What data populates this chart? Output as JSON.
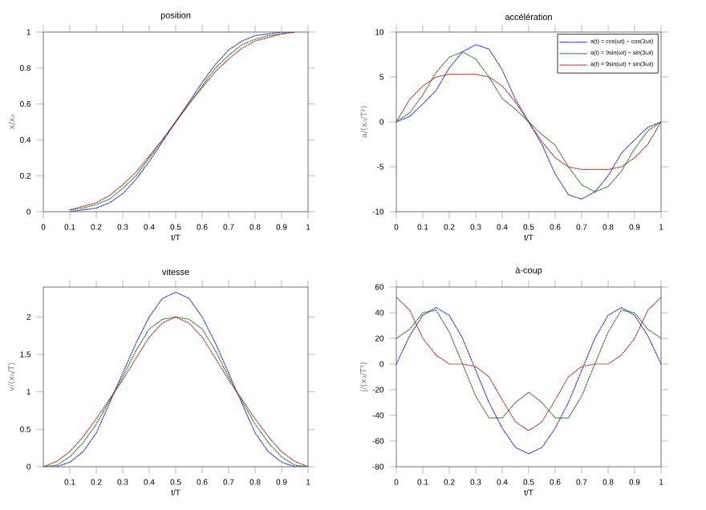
{
  "chart_data": [
    {
      "type": "line",
      "title": "position",
      "xlabel": "t/T",
      "ylabel": "x/x₀",
      "line_style": "dotted",
      "x": [
        0.1,
        0.15,
        0.2,
        0.25,
        0.3,
        0.35,
        0.4,
        0.45,
        0.5,
        0.55,
        0.6,
        0.65,
        0.7,
        0.75,
        0.8,
        0.85,
        0.9,
        0.95
      ],
      "xlim": [
        0,
        1
      ],
      "ylim": [
        0,
        1
      ],
      "xticks": [
        0,
        0.1,
        0.2,
        0.3,
        0.4,
        0.5,
        0.6,
        0.7,
        0.8,
        0.9,
        1
      ],
      "yticks": [
        0,
        0.2,
        0.4,
        0.6,
        0.8,
        1
      ],
      "series": [
        {
          "color": "#0000ff",
          "values": [
            0,
            0.01,
            0.02,
            0.05,
            0.1,
            0.18,
            0.28,
            0.39,
            0.5,
            0.61,
            0.72,
            0.82,
            0.9,
            0.95,
            0.98,
            0.99,
            1,
            1
          ]
        },
        {
          "color": "#006400",
          "values": [
            0.01,
            0.02,
            0.04,
            0.07,
            0.13,
            0.2,
            0.3,
            0.4,
            0.5,
            0.6,
            0.7,
            0.8,
            0.87,
            0.93,
            0.96,
            0.98,
            0.99,
            1
          ]
        },
        {
          "color": "#c00000",
          "values": [
            0.01,
            0.03,
            0.05,
            0.09,
            0.15,
            0.22,
            0.31,
            0.4,
            0.5,
            0.6,
            0.69,
            0.78,
            0.85,
            0.91,
            0.95,
            0.97,
            0.99,
            1
          ]
        }
      ]
    },
    {
      "type": "line",
      "title": "accélération",
      "xlabel": "t/T",
      "ylabel": "a/(x₀/T²)",
      "line_style": "dotted",
      "legend": "top right",
      "x": [
        0,
        0.05,
        0.1,
        0.15,
        0.2,
        0.25,
        0.3,
        0.35,
        0.4,
        0.45,
        0.5,
        0.55,
        0.6,
        0.65,
        0.7,
        0.75,
        0.8,
        0.85,
        0.9,
        0.95,
        1
      ],
      "xlim": [
        0,
        1
      ],
      "ylim": [
        -10,
        10
      ],
      "xticks": [
        0,
        0.1,
        0.2,
        0.3,
        0.4,
        0.5,
        0.6,
        0.7,
        0.8,
        0.9,
        1
      ],
      "yticks": [
        -10,
        -5,
        0,
        5,
        10
      ],
      "series": [
        {
          "name": "a(t) = cos(ωt) − cos(3ωt)",
          "color": "#0000ff",
          "values": [
            0,
            0.6,
            2,
            3.5,
            6,
            7.8,
            8.6,
            8.1,
            5.8,
            2.5,
            0,
            -2.5,
            -5.8,
            -8.1,
            -8.6,
            -7.8,
            -6,
            -3.5,
            -2,
            -0.6,
            0
          ]
        },
        {
          "name": "a(t) = 9sin(ωt) − sin(3ωt)",
          "color": "#006400",
          "values": [
            0,
            1,
            3,
            5.5,
            7.2,
            7.8,
            7,
            5,
            2.6,
            1.4,
            0,
            -1.4,
            -2.6,
            -5,
            -7,
            -7.8,
            -7.2,
            -5.5,
            -3,
            -1,
            0
          ]
        },
        {
          "name": "a(t) = 9sin(ωt) + sin(3ωt)",
          "color": "#c00000",
          "values": [
            0,
            2.5,
            4,
            5,
            5.3,
            5.3,
            5.3,
            5,
            4,
            2.2,
            0,
            -2.2,
            -4,
            -5,
            -5.3,
            -5.3,
            -5.3,
            -5,
            -4,
            -2.5,
            0
          ]
        }
      ]
    },
    {
      "type": "line",
      "title": "vitesse",
      "xlabel": "t/T",
      "ylabel": "v/(x₀/T)",
      "line_style": "dotted",
      "x": [
        0,
        0.05,
        0.1,
        0.15,
        0.2,
        0.25,
        0.3,
        0.35,
        0.4,
        0.45,
        0.5,
        0.55,
        0.6,
        0.65,
        0.7,
        0.75,
        0.8,
        0.85,
        0.9,
        0.95,
        1
      ],
      "xlim": [
        0,
        1
      ],
      "ylim": [
        0,
        2.4
      ],
      "xticks": [
        0.1,
        0.2,
        0.3,
        0.4,
        0.5,
        0.6,
        0.7,
        0.8,
        0.9,
        1
      ],
      "yticks": [
        0,
        0.5,
        1,
        1.5,
        2
      ],
      "series": [
        {
          "color": "#0000ff",
          "values": [
            0,
            0,
            0.06,
            0.2,
            0.45,
            0.85,
            1.25,
            1.65,
            2,
            2.25,
            2.33,
            2.25,
            2,
            1.65,
            1.25,
            0.85,
            0.45,
            0.2,
            0.06,
            0,
            0
          ]
        },
        {
          "color": "#006400",
          "values": [
            0,
            0.02,
            0.13,
            0.32,
            0.57,
            0.88,
            1.2,
            1.55,
            1.84,
            1.97,
            2,
            1.97,
            1.84,
            1.55,
            1.2,
            0.88,
            0.57,
            0.32,
            0.13,
            0.02,
            0
          ]
        },
        {
          "color": "#c00000",
          "values": [
            0,
            0.07,
            0.2,
            0.4,
            0.64,
            0.9,
            1.16,
            1.45,
            1.73,
            1.92,
            2,
            1.92,
            1.73,
            1.45,
            1.16,
            0.9,
            0.64,
            0.4,
            0.2,
            0.07,
            0
          ]
        }
      ]
    },
    {
      "type": "line",
      "title": "à-coup",
      "xlabel": "t/T",
      "ylabel": "j/(x₀/T³)",
      "line_style": "dotted",
      "x": [
        0,
        0.05,
        0.1,
        0.15,
        0.2,
        0.25,
        0.3,
        0.35,
        0.4,
        0.45,
        0.5,
        0.55,
        0.6,
        0.65,
        0.7,
        0.75,
        0.8,
        0.85,
        0.9,
        0.95,
        1
      ],
      "xlim": [
        0,
        1
      ],
      "ylim": [
        -80,
        60
      ],
      "xticks": [
        0,
        0.1,
        0.2,
        0.3,
        0.4,
        0.5,
        0.6,
        0.7,
        0.8,
        0.9,
        1
      ],
      "yticks": [
        -80,
        -60,
        -40,
        -20,
        0,
        20,
        40,
        60
      ],
      "series": [
        {
          "color": "#0000ff",
          "values": [
            0,
            22,
            38,
            44,
            38,
            20,
            -5,
            -30,
            -50,
            -65,
            -70,
            -65,
            -50,
            -30,
            -5,
            20,
            38,
            44,
            38,
            22,
            0
          ]
        },
        {
          "color": "#006400",
          "values": [
            20,
            27,
            40,
            42,
            25,
            0,
            -25,
            -42,
            -42,
            -30,
            -22,
            -30,
            -42,
            -42,
            -25,
            0,
            25,
            42,
            40,
            27,
            20
          ]
        },
        {
          "color": "#c00000",
          "values": [
            52,
            42,
            20,
            7,
            0,
            0,
            -2,
            -10,
            -28,
            -45,
            -52,
            -45,
            -28,
            -10,
            -2,
            0,
            0,
            7,
            20,
            42,
            52
          ]
        }
      ]
    }
  ]
}
